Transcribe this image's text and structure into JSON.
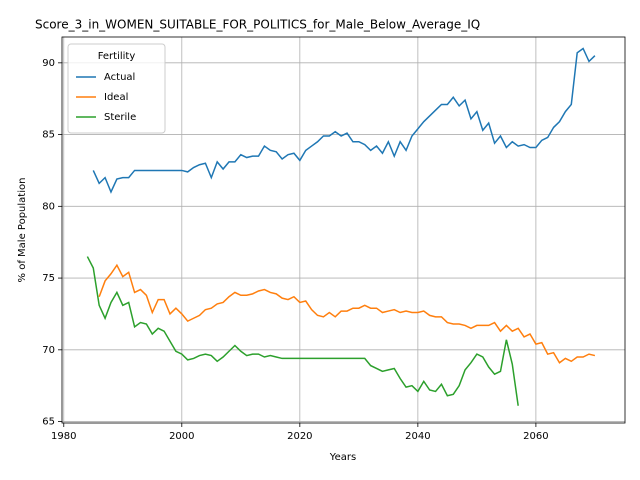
{
  "chart_data": {
    "type": "line",
    "title": "Score_3_in_WOMEN_SUITABLE_FOR_POLITICS_for_Male_Below_Average_IQ",
    "x_label": "Years",
    "y_label": "% of Male Population",
    "legend_title": "Fertility",
    "legend": "upper left",
    "grid": true,
    "x": [
      1984,
      1985,
      1986,
      1987,
      1988,
      1989,
      1990,
      1991,
      1992,
      1993,
      1994,
      1995,
      1996,
      1997,
      1998,
      1999,
      2000,
      2001,
      2002,
      2003,
      2004,
      2005,
      2006,
      2007,
      2008,
      2009,
      2010,
      2011,
      2012,
      2013,
      2014,
      2015,
      2016,
      2017,
      2018,
      2019,
      2020,
      2021,
      2022,
      2023,
      2024,
      2025,
      2026,
      2027,
      2028,
      2029,
      2030,
      2031,
      2032,
      2033,
      2034,
      2035,
      2036,
      2037,
      2038,
      2039,
      2040,
      2041,
      2042,
      2043,
      2044,
      2045,
      2046,
      2047,
      2048,
      2049,
      2050,
      2051,
      2052,
      2053,
      2054,
      2055,
      2056,
      2057,
      2058,
      2059,
      2060,
      2061,
      2062,
      2063,
      2064,
      2065,
      2066,
      2067,
      2068,
      2069,
      2070
    ],
    "series": [
      {
        "name": "Actual",
        "color": "#1f77b4",
        "values": [
          null,
          82.5,
          81.6,
          82.0,
          81.0,
          81.9,
          82.0,
          82.0,
          82.5,
          82.5,
          82.5,
          82.5,
          82.5,
          82.5,
          82.5,
          82.5,
          82.5,
          82.4,
          82.7,
          82.9,
          83.0,
          82.0,
          83.1,
          82.6,
          83.1,
          83.1,
          83.6,
          83.4,
          83.5,
          83.5,
          84.2,
          83.9,
          83.8,
          83.3,
          83.6,
          83.7,
          83.2,
          83.9,
          84.2,
          84.5,
          84.9,
          84.9,
          85.2,
          84.9,
          85.1,
          84.5,
          84.5,
          84.3,
          83.9,
          84.2,
          83.7,
          84.5,
          83.5,
          84.5,
          83.9,
          84.9,
          85.4,
          85.9,
          86.3,
          86.7,
          87.1,
          87.1,
          87.6,
          87.0,
          87.4,
          86.1,
          86.6,
          85.3,
          85.8,
          84.4,
          84.9,
          84.1,
          84.5,
          84.2,
          84.3,
          84.1,
          84.1,
          84.6,
          84.8,
          85.5,
          85.9,
          86.6,
          87.1,
          90.7,
          91.0,
          90.1,
          90.5
        ]
      },
      {
        "name": "Ideal",
        "color": "#ff7f0e",
        "values": [
          null,
          null,
          73.7,
          74.8,
          75.3,
          75.9,
          75.1,
          75.4,
          74.0,
          74.2,
          73.8,
          72.6,
          73.5,
          73.5,
          72.5,
          72.9,
          72.5,
          72.0,
          72.2,
          72.4,
          72.8,
          72.9,
          73.2,
          73.3,
          73.7,
          74.0,
          73.8,
          73.8,
          73.9,
          74.1,
          74.2,
          74.0,
          73.9,
          73.6,
          73.5,
          73.7,
          73.3,
          73.4,
          72.8,
          72.4,
          72.3,
          72.6,
          72.3,
          72.7,
          72.7,
          72.9,
          72.9,
          73.1,
          72.9,
          72.9,
          72.6,
          72.7,
          72.8,
          72.6,
          72.7,
          72.6,
          72.6,
          72.7,
          72.4,
          72.3,
          72.3,
          71.9,
          71.8,
          71.8,
          71.7,
          71.5,
          71.7,
          71.7,
          71.7,
          71.9,
          71.3,
          71.7,
          71.3,
          71.5,
          70.9,
          71.1,
          70.4,
          70.5,
          69.7,
          69.8,
          69.1,
          69.4,
          69.2,
          69.5,
          69.5,
          69.7,
          69.6
        ]
      },
      {
        "name": "Sterile",
        "color": "#2ca02c",
        "values": [
          76.5,
          75.7,
          73.1,
          72.2,
          73.3,
          74.0,
          73.1,
          73.3,
          71.6,
          71.9,
          71.8,
          71.1,
          71.5,
          71.3,
          70.6,
          69.9,
          69.7,
          69.3,
          69.4,
          69.6,
          69.7,
          69.6,
          69.2,
          69.5,
          69.9,
          70.3,
          69.9,
          69.6,
          69.7,
          69.7,
          69.5,
          69.6,
          69.5,
          69.4,
          69.4,
          69.4,
          69.4,
          69.4,
          69.4,
          69.4,
          69.4,
          69.4,
          69.4,
          69.4,
          69.4,
          69.4,
          69.4,
          69.4,
          68.9,
          68.7,
          68.5,
          68.6,
          68.7,
          68.0,
          67.4,
          67.5,
          67.1,
          67.8,
          67.2,
          67.1,
          67.6,
          66.8,
          66.9,
          67.5,
          68.6,
          69.1,
          69.7,
          69.5,
          68.8,
          68.3,
          68.5,
          70.7,
          69.0,
          66.1,
          null,
          null,
          null,
          null,
          null,
          null,
          null,
          null,
          null,
          null,
          null,
          null,
          null
        ]
      }
    ],
    "xlim": [
      1979.7,
      2075.1
    ],
    "xticks": [
      1980,
      2000,
      2020,
      2040,
      2060
    ],
    "ylim": [
      64.9,
      91.8
    ],
    "yticks": [
      65,
      70,
      75,
      80,
      85,
      90
    ]
  }
}
